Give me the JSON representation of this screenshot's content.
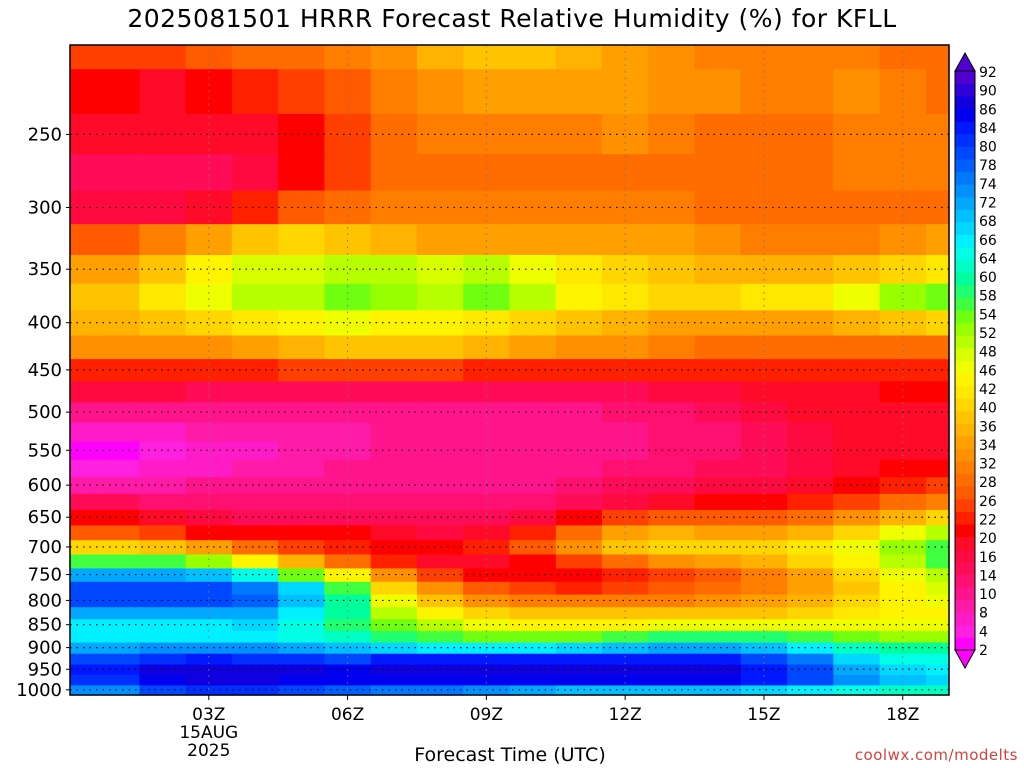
{
  "title": "2025081501 HRRR Forecast Relative Humidity (%) for KFLL",
  "watermark": "coolwx.com/modelts",
  "chart_data": {
    "type": "heatmap",
    "title": "2025081501 HRRR Forecast Relative Humidity (%) for KFLL",
    "xlabel": "Forecast Time (UTC)",
    "ylabel": "",
    "x_hours_utc": [
      1,
      2,
      3,
      4,
      5,
      6,
      7,
      8,
      9,
      10,
      11,
      12,
      13,
      14,
      15,
      16,
      17,
      18,
      19
    ],
    "y_pressure_hpa": [
      1000,
      975,
      950,
      925,
      900,
      875,
      850,
      825,
      800,
      775,
      750,
      725,
      700,
      675,
      650,
      625,
      600,
      575,
      550,
      525,
      500,
      475,
      450,
      425,
      400,
      375,
      350,
      325,
      300,
      275,
      250,
      225,
      200
    ],
    "values": [
      [
        74,
        80,
        82,
        82,
        80,
        78,
        76,
        76,
        74,
        72,
        70,
        70,
        70,
        70,
        68,
        66,
        64,
        62,
        62
      ],
      [
        82,
        86,
        88,
        88,
        86,
        86,
        86,
        86,
        86,
        86,
        86,
        86,
        86,
        86,
        84,
        80,
        74,
        70,
        68
      ],
      [
        84,
        88,
        88,
        88,
        88,
        86,
        88,
        88,
        88,
        88,
        88,
        88,
        88,
        88,
        84,
        80,
        72,
        68,
        66
      ],
      [
        80,
        82,
        84,
        82,
        82,
        80,
        84,
        84,
        84,
        84,
        84,
        84,
        84,
        84,
        80,
        76,
        68,
        64,
        64
      ],
      [
        72,
        74,
        74,
        74,
        72,
        70,
        68,
        66,
        66,
        66,
        68,
        70,
        72,
        72,
        70,
        66,
        62,
        60,
        60
      ],
      [
        66,
        66,
        66,
        66,
        64,
        62,
        58,
        56,
        54,
        54,
        54,
        56,
        58,
        58,
        58,
        56,
        54,
        52,
        52
      ],
      [
        66,
        66,
        66,
        68,
        64,
        58,
        54,
        50,
        46,
        44,
        44,
        44,
        46,
        46,
        46,
        46,
        46,
        46,
        46
      ],
      [
        72,
        72,
        72,
        72,
        66,
        60,
        50,
        44,
        40,
        38,
        38,
        38,
        38,
        38,
        38,
        40,
        42,
        44,
        44
      ],
      [
        80,
        80,
        80,
        78,
        70,
        60,
        46,
        38,
        32,
        30,
        30,
        30,
        30,
        32,
        34,
        36,
        40,
        44,
        46
      ],
      [
        80,
        80,
        80,
        76,
        68,
        56,
        40,
        32,
        26,
        24,
        22,
        24,
        26,
        28,
        30,
        34,
        38,
        44,
        48
      ],
      [
        72,
        72,
        70,
        64,
        54,
        44,
        32,
        24,
        20,
        20,
        20,
        22,
        24,
        26,
        30,
        34,
        40,
        46,
        50
      ],
      [
        56,
        56,
        52,
        44,
        36,
        28,
        22,
        18,
        18,
        20,
        24,
        28,
        32,
        34,
        36,
        40,
        44,
        50,
        56
      ],
      [
        40,
        38,
        34,
        28,
        24,
        22,
        20,
        20,
        22,
        26,
        32,
        38,
        40,
        40,
        40,
        42,
        46,
        52,
        56
      ],
      [
        26,
        24,
        20,
        20,
        20,
        20,
        18,
        16,
        18,
        22,
        28,
        34,
        36,
        34,
        34,
        36,
        40,
        46,
        50
      ],
      [
        20,
        18,
        16,
        14,
        14,
        14,
        14,
        14,
        14,
        16,
        20,
        24,
        26,
        26,
        26,
        28,
        32,
        36,
        40
      ],
      [
        14,
        12,
        12,
        12,
        12,
        12,
        12,
        12,
        12,
        12,
        14,
        16,
        18,
        20,
        20,
        22,
        24,
        28,
        30
      ],
      [
        8,
        8,
        10,
        10,
        10,
        10,
        10,
        10,
        10,
        10,
        12,
        14,
        14,
        16,
        16,
        18,
        20,
        22,
        24
      ],
      [
        4,
        6,
        6,
        8,
        8,
        10,
        10,
        10,
        10,
        10,
        10,
        12,
        12,
        14,
        14,
        16,
        18,
        20,
        20
      ],
      [
        2,
        4,
        6,
        6,
        8,
        8,
        10,
        10,
        10,
        10,
        10,
        10,
        12,
        12,
        14,
        16,
        18,
        18,
        18
      ],
      [
        6,
        6,
        8,
        8,
        8,
        8,
        10,
        10,
        10,
        10,
        10,
        10,
        12,
        12,
        14,
        16,
        18,
        18,
        18
      ],
      [
        10,
        10,
        10,
        10,
        10,
        10,
        10,
        10,
        10,
        10,
        10,
        12,
        12,
        14,
        16,
        18,
        18,
        18,
        18
      ],
      [
        16,
        16,
        14,
        14,
        14,
        14,
        14,
        14,
        14,
        14,
        14,
        14,
        16,
        16,
        18,
        18,
        18,
        20,
        20
      ],
      [
        22,
        22,
        22,
        22,
        24,
        24,
        24,
        24,
        22,
        22,
        22,
        22,
        22,
        22,
        22,
        22,
        22,
        22,
        22
      ],
      [
        32,
        32,
        32,
        34,
        36,
        38,
        38,
        38,
        36,
        34,
        32,
        32,
        30,
        28,
        28,
        28,
        28,
        28,
        28
      ],
      [
        36,
        38,
        40,
        42,
        44,
        46,
        44,
        44,
        42,
        40,
        38,
        36,
        34,
        34,
        34,
        34,
        36,
        38,
        40
      ],
      [
        38,
        42,
        46,
        50,
        50,
        54,
        52,
        50,
        54,
        50,
        44,
        42,
        40,
        40,
        42,
        42,
        46,
        52,
        54
      ],
      [
        34,
        38,
        44,
        48,
        48,
        50,
        50,
        48,
        50,
        46,
        42,
        40,
        38,
        36,
        36,
        36,
        38,
        40,
        42
      ],
      [
        26,
        30,
        34,
        38,
        40,
        38,
        36,
        34,
        34,
        34,
        34,
        34,
        34,
        32,
        30,
        30,
        30,
        32,
        34
      ],
      [
        16,
        16,
        18,
        22,
        26,
        28,
        30,
        30,
        30,
        30,
        30,
        30,
        30,
        28,
        28,
        28,
        28,
        28,
        28
      ],
      [
        14,
        14,
        14,
        16,
        20,
        24,
        28,
        28,
        28,
        28,
        28,
        28,
        28,
        28,
        28,
        28,
        30,
        30,
        30
      ],
      [
        18,
        18,
        18,
        18,
        20,
        24,
        28,
        30,
        30,
        30,
        30,
        32,
        30,
        28,
        28,
        28,
        30,
        30,
        30
      ],
      [
        20,
        18,
        20,
        22,
        24,
        26,
        30,
        32,
        34,
        34,
        34,
        34,
        32,
        32,
        30,
        30,
        32,
        30,
        28
      ],
      [
        24,
        24,
        26,
        28,
        28,
        30,
        32,
        36,
        38,
        38,
        36,
        34,
        32,
        30,
        30,
        30,
        30,
        28,
        28
      ]
    ],
    "x_ticks": [
      "03Z",
      "06Z",
      "09Z",
      "12Z",
      "15Z",
      "18Z"
    ],
    "x_tick_hours": [
      3,
      6,
      9,
      12,
      15,
      18
    ],
    "x_date_label": [
      "15AUG",
      "2025"
    ],
    "y_ticks": [
      "250",
      "300",
      "350",
      "400",
      "450",
      "500",
      "550",
      "600",
      "650",
      "700",
      "750",
      "800",
      "850",
      "900",
      "950",
      "1000"
    ],
    "y_tick_values": [
      250,
      300,
      350,
      400,
      450,
      500,
      550,
      600,
      650,
      700,
      750,
      800,
      850,
      900,
      950,
      1000
    ],
    "ylim": [
      1013,
      200
    ],
    "xlim": [
      0,
      19
    ],
    "log_pressure_axis": true,
    "grid": "dotted",
    "colorbar": {
      "labels": [
        "92",
        "90",
        "86",
        "84",
        "80",
        "78",
        "74",
        "72",
        "68",
        "66",
        "64",
        "60",
        "58",
        "54",
        "52",
        "48",
        "46",
        "42",
        "40",
        "36",
        "34",
        "32",
        "28",
        "26",
        "22",
        "20",
        "16",
        "14",
        "10",
        "8",
        "4",
        "2"
      ],
      "levels": [
        2,
        4,
        6,
        8,
        10,
        12,
        14,
        16,
        18,
        20,
        22,
        24,
        26,
        28,
        30,
        32,
        34,
        36,
        38,
        40,
        42,
        44,
        46,
        48,
        50,
        52,
        54,
        56,
        58,
        60,
        62,
        64,
        66,
        68,
        70,
        72,
        74,
        76,
        78,
        80,
        82,
        84,
        86,
        88,
        90,
        92
      ],
      "colors": [
        "#ff00ff",
        "#ff20e0",
        "#ff1cc8",
        "#ff1aa8",
        "#ff148c",
        "#ff1070",
        "#ff0c58",
        "#ff0a40",
        "#ff0a28",
        "#ff0000",
        "#ff2000",
        "#ff4000",
        "#ff5a00",
        "#ff6c00",
        "#ff7e00",
        "#ff9000",
        "#ffa000",
        "#ffb200",
        "#ffc400",
        "#ffd600",
        "#ffe800",
        "#fff400",
        "#f0ff00",
        "#d8ff00",
        "#b8ff00",
        "#98ff00",
        "#70ff10",
        "#40ff40",
        "#20ff70",
        "#00ff9c",
        "#00ffc4",
        "#00ffe4",
        "#00f0ff",
        "#00d8ff",
        "#00c0ff",
        "#00a8ff",
        "#0090ff",
        "#0078ff",
        "#0060ff",
        "#0048ff",
        "#0030ff",
        "#0018ff",
        "#0000f0",
        "#1000e0",
        "#3000d8",
        "#5000d0"
      ]
    },
    "ground_color": "#a0522d"
  }
}
